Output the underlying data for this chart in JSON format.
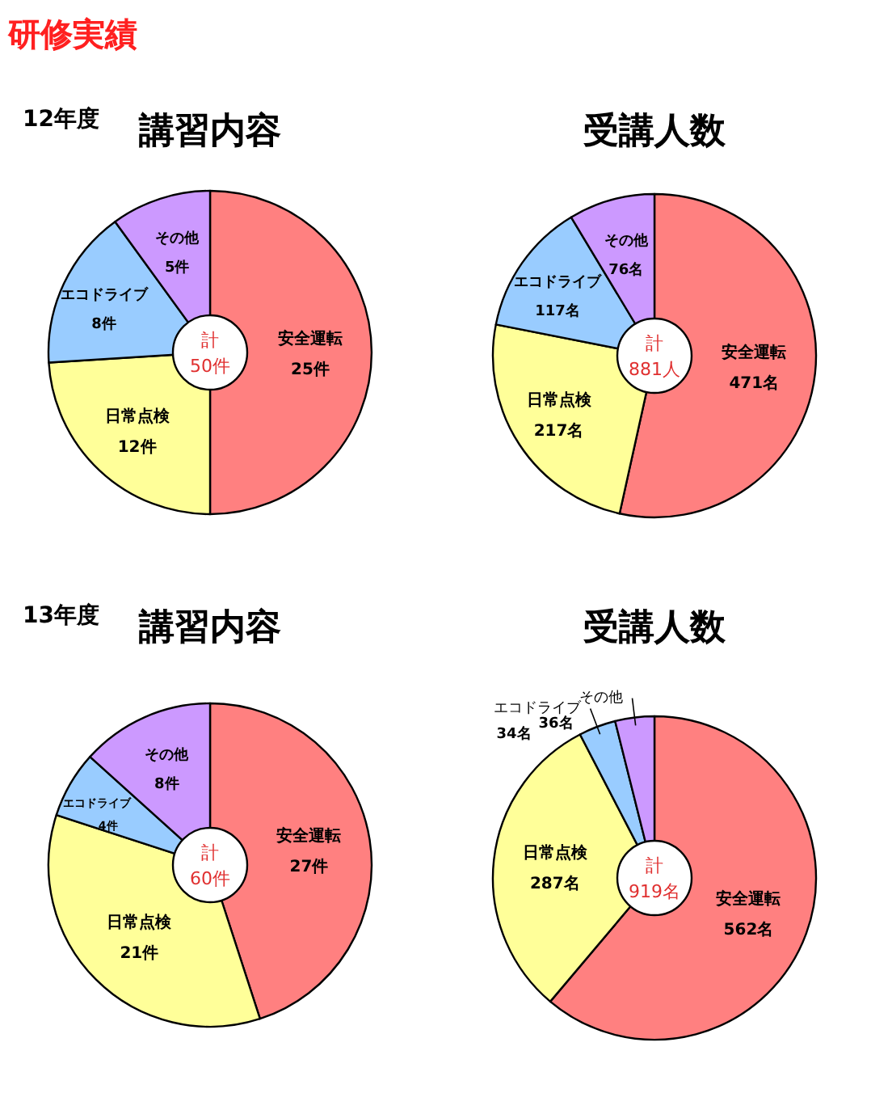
{
  "chart_data": [
    {
      "type": "other",
      "title": "研修実績"
    },
    {
      "type": "donut",
      "title": "講習内容",
      "subtitle": "12年度",
      "categories": [
        "安全運転",
        "日常点検",
        "エコドライブ",
        "その他"
      ],
      "values": [
        25,
        12,
        8,
        5
      ],
      "value_labels": [
        "25件",
        "12件",
        "8件",
        "5件"
      ],
      "colors": [
        "#ff8080",
        "#ffff99",
        "#99ccff",
        "#cc99ff"
      ],
      "annotations": [
        "計",
        "50件"
      ]
    },
    {
      "type": "donut",
      "title": "受講人数",
      "categories": [
        "安全運転",
        "日常点検",
        "エコドライブ",
        "その他"
      ],
      "values": [
        471,
        217,
        117,
        76
      ],
      "value_labels": [
        "471名",
        "217名",
        "117名",
        "76名"
      ],
      "colors": [
        "#ff8080",
        "#ffff99",
        "#99ccff",
        "#cc99ff"
      ],
      "annotations": [
        "計",
        "881人"
      ]
    },
    {
      "type": "donut",
      "title": "講習内容",
      "subtitle": "13年度",
      "categories": [
        "安全運転",
        "日常点検",
        "エコドライブ",
        "その他"
      ],
      "values": [
        27,
        21,
        4,
        8
      ],
      "value_labels": [
        "27件",
        "21件",
        "4件",
        "8件"
      ],
      "colors": [
        "#ff8080",
        "#ffff99",
        "#99ccff",
        "#cc99ff"
      ],
      "annotations": [
        "計",
        "60件"
      ]
    },
    {
      "type": "donut",
      "title": "受講人数",
      "categories": [
        "安全運転",
        "日常点検",
        "エコドライブ",
        "その他"
      ],
      "values": [
        562,
        287,
        34,
        36
      ],
      "value_labels": [
        "562名",
        "287名",
        "34名",
        "36名"
      ],
      "colors": [
        "#ff8080",
        "#ffff99",
        "#99ccff",
        "#cc99ff"
      ],
      "annotations": [
        "計",
        "919名"
      ]
    }
  ]
}
